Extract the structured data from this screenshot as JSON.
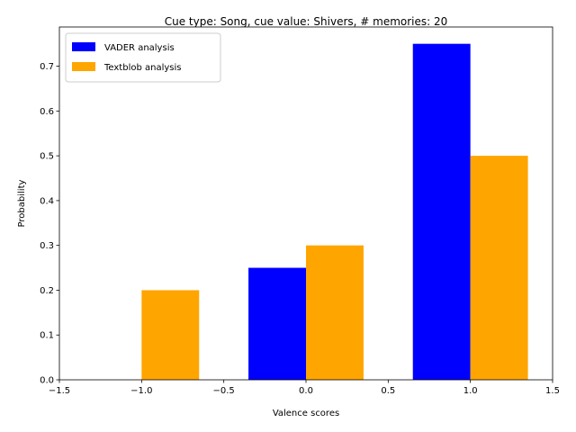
{
  "chart_data": {
    "type": "bar",
    "title": "Cue type: Song, cue value: Shivers, # memories: 20",
    "xlabel": "Valence scores",
    "ylabel": "Probability",
    "xlim": [
      -1.5,
      1.5
    ],
    "ylim": [
      0,
      0.7875
    ],
    "xticks": [
      -1.5,
      -1.0,
      -0.5,
      0.0,
      0.5,
      1.0,
      1.5
    ],
    "xtick_labels": [
      "−1.5",
      "−1.0",
      "−0.5",
      "0.0",
      "0.5",
      "1.0",
      "1.5"
    ],
    "yticks": [
      0.0,
      0.1,
      0.2,
      0.3,
      0.4,
      0.5,
      0.6,
      0.7
    ],
    "ytick_labels": [
      "0.0",
      "0.1",
      "0.2",
      "0.3",
      "0.4",
      "0.5",
      "0.6",
      "0.7"
    ],
    "bar_width": 0.35,
    "grid": false,
    "legend_position": "top-left",
    "series": [
      {
        "name": "VADER analysis",
        "color": "#0000ff",
        "align": "left",
        "x": [
          -1.0,
          0.0,
          1.0
        ],
        "values": [
          0.0,
          0.25,
          0.75
        ]
      },
      {
        "name": "Textblob analysis",
        "color": "#ffa500",
        "align": "right",
        "x": [
          -1.0,
          0.0,
          1.0
        ],
        "values": [
          0.2,
          0.3,
          0.5
        ]
      }
    ]
  }
}
